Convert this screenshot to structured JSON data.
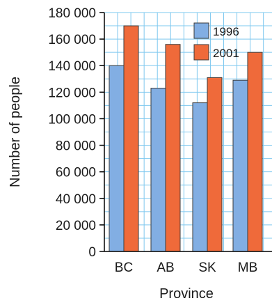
{
  "chart_data": {
    "type": "bar",
    "title": "",
    "xlabel": "Province",
    "ylabel": "Number of people",
    "categories": [
      "BC",
      "AB",
      "SK",
      "MB"
    ],
    "series": [
      {
        "name": "1996",
        "values": [
          140000,
          123000,
          112000,
          129000
        ],
        "color": "#82aee3"
      },
      {
        "name": "2001",
        "values": [
          170000,
          156000,
          131000,
          150000
        ],
        "color": "#ef6a3a"
      }
    ],
    "ylim": [
      0,
      180000
    ],
    "yticks": [
      0,
      20000,
      40000,
      60000,
      80000,
      100000,
      120000,
      140000,
      160000,
      180000
    ],
    "ytick_labels": [
      "0",
      "20 000",
      "40 000",
      "60 000",
      "80 000",
      "100 000",
      "120 000",
      "140 000",
      "160 000",
      "180 000"
    ],
    "grid": true,
    "grid_color": "#7ec8ef",
    "legend_position": "top-right"
  }
}
